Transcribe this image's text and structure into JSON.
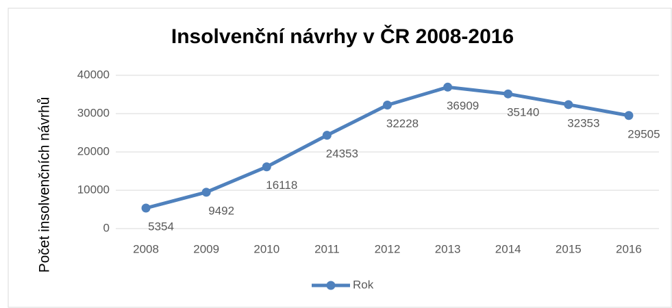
{
  "chart_data": {
    "type": "line",
    "title": "Insolvenční návrhy v ČR 2008-2016",
    "y_label": "Počet insolvenčních návrhů",
    "categories": [
      "2008",
      "2009",
      "2010",
      "2011",
      "2012",
      "2013",
      "2014",
      "2015",
      "2016"
    ],
    "series": [
      {
        "name": "Rok",
        "color": "#4f81bd",
        "values": [
          5354,
          9492,
          16118,
          24353,
          32228,
          36909,
          35140,
          32353,
          29505
        ]
      }
    ],
    "ylim": [
      0,
      40000
    ],
    "yticks": [
      0,
      10000,
      20000,
      30000,
      40000
    ],
    "grid": true,
    "legend": "bottom",
    "data_labels": true
  }
}
